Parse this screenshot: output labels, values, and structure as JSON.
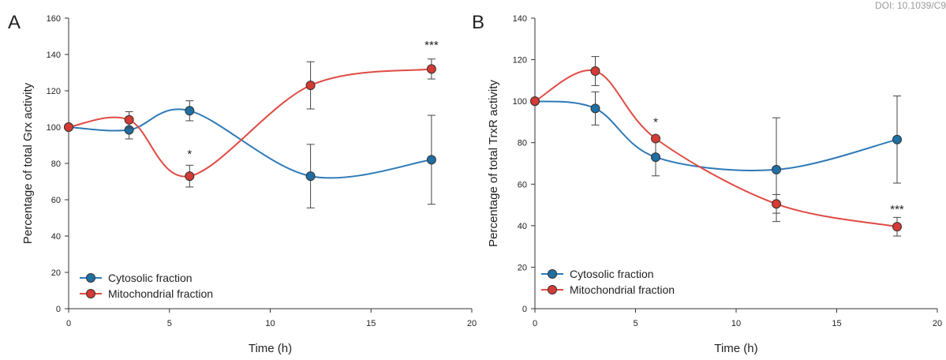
{
  "doi_text": "DOI: 10.1039/C9",
  "colors": {
    "cytosolic": "#1f6fa3",
    "cytosolic_line": "#2e7ab8",
    "mitochondrial": "#d63a34",
    "mitochondrial_line": "#e04a43",
    "axis": "#333333"
  },
  "chart_data": [
    {
      "type": "line",
      "panel_label": "A",
      "xlabel": "Time (h)",
      "ylabel": "Percentage of total Grx activity",
      "xlim": [
        0,
        20
      ],
      "ylim": [
        0,
        160
      ],
      "xticks": [
        0,
        5,
        10,
        15,
        20
      ],
      "yticks": [
        0,
        20,
        40,
        60,
        80,
        100,
        120,
        140,
        160
      ],
      "grid": false,
      "legend_placement": "bottom-left",
      "series": [
        {
          "name": "Cytosolic fraction",
          "color_key": "cytosolic",
          "x": [
            0,
            3,
            6,
            12,
            18
          ],
          "y": [
            100,
            98.5,
            109,
            73,
            82
          ],
          "error": [
            0,
            5,
            5.5,
            17.5,
            24.5
          ]
        },
        {
          "name": "Mitochondrial fraction",
          "color_key": "mitochondrial",
          "x": [
            0,
            3,
            6,
            12,
            18
          ],
          "y": [
            100,
            104,
            73,
            123,
            132
          ],
          "error": [
            0,
            4.5,
            6,
            13,
            5.5
          ]
        }
      ],
      "annotations": [
        {
          "x": 6,
          "y": 83,
          "text": "*"
        },
        {
          "x": 18,
          "y": 143,
          "text": "***"
        }
      ]
    },
    {
      "type": "line",
      "panel_label": "B",
      "xlabel": "Time (h)",
      "ylabel": "Percentage of total TrxR activity",
      "xlim": [
        0,
        20
      ],
      "ylim": [
        0,
        140
      ],
      "xticks": [
        0,
        5,
        10,
        15,
        20
      ],
      "yticks": [
        0,
        20,
        40,
        60,
        80,
        100,
        120,
        140
      ],
      "grid": false,
      "legend_placement": "bottom-left",
      "series": [
        {
          "name": "Cytosolic fraction",
          "color_key": "cytosolic",
          "x": [
            0,
            3,
            6,
            12,
            18
          ],
          "y": [
            100,
            96.5,
            73,
            67,
            81.5
          ],
          "error": [
            0,
            8,
            9,
            25,
            21
          ]
        },
        {
          "name": "Mitochondrial fraction",
          "color_key": "mitochondrial",
          "x": [
            0,
            3,
            6,
            12,
            18
          ],
          "y": [
            100,
            114.5,
            82,
            50.5,
            39.5
          ],
          "error": [
            0,
            7,
            0,
            4.5,
            4.5
          ]
        }
      ],
      "annotations": [
        {
          "x": 6,
          "y": 88,
          "text": "*"
        },
        {
          "x": 18,
          "y": 46,
          "text": "***"
        }
      ]
    }
  ]
}
